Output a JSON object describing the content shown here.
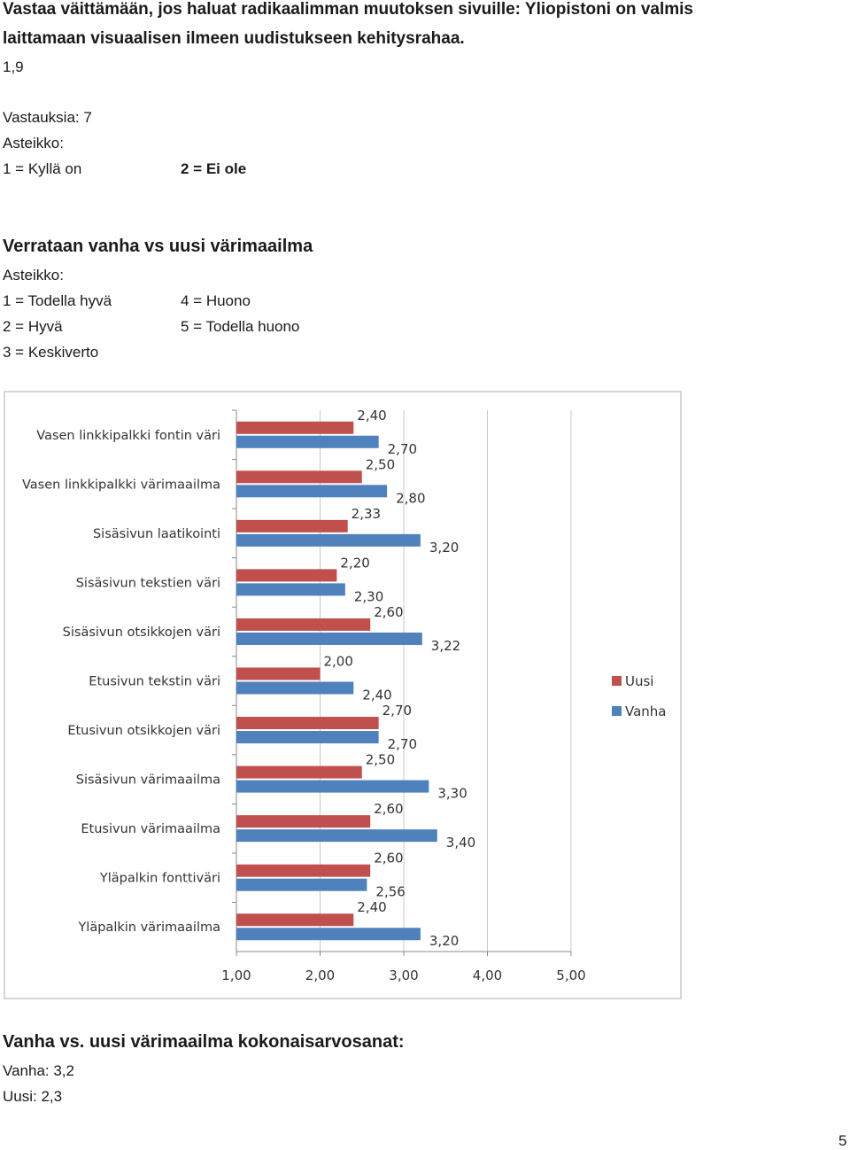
{
  "intro": {
    "heading_line1": "Vastaa väittämään, jos haluat radikaalimman muutoksen sivuille: Yliopistoni on valmis",
    "heading_line2": "laittamaan visuaalisen ilmeen uudistukseen kehitysrahaa.",
    "average": "1,9",
    "responses": "Vastauksia: 7",
    "scale_label": "Asteikko:",
    "scale_1": "1 = Kyllä on",
    "scale_2": "2 = Ei ole"
  },
  "comparison": {
    "title": "Verrataan vanha vs uusi värimaailma",
    "scale_label": "Asteikko:",
    "scale_1": "1 = Todella hyvä",
    "scale_2": "2 = Hyvä",
    "scale_3": "3 = Keskiverto",
    "scale_4": "4 = Huono",
    "scale_5": "5 = Todella huono"
  },
  "chart_data": {
    "type": "bar",
    "orientation": "horizontal",
    "categories": [
      "Vasen linkkipalkki fontin väri",
      "Vasen linkkipalkki värimaailma",
      "Sisäsivun laatikointi",
      "Sisäsivun tekstien väri",
      "Sisäsivun otsikkojen väri",
      "Etusivun tekstin väri",
      "Etusivun otsikkojen väri",
      "Sisäsivun värimaailma",
      "Etusivun värimaailma",
      "Yläpalkin fonttiväri",
      "Yläpalkin värimaailma"
    ],
    "series": [
      {
        "name": "Uusi",
        "color": "#c0504d",
        "values": [
          2.4,
          2.5,
          2.33,
          2.2,
          2.6,
          2.0,
          2.7,
          2.5,
          2.6,
          2.6,
          2.4
        ],
        "labels": [
          "2,40",
          "2,50",
          "2,33",
          "2,20",
          "2,60",
          "2,00",
          "2,70",
          "2,50",
          "2,60",
          "2,60",
          "2,40"
        ]
      },
      {
        "name": "Vanha",
        "color": "#4f81bd",
        "values": [
          2.7,
          2.8,
          3.2,
          2.3,
          3.22,
          2.4,
          2.7,
          3.3,
          3.4,
          2.56,
          3.2
        ],
        "labels": [
          "2,70",
          "2,80",
          "3,20",
          "2,30",
          "3,22",
          "2,40",
          "2,70",
          "3,30",
          "3,40",
          "2,56",
          "3,20"
        ]
      }
    ],
    "xlim": [
      1,
      5
    ],
    "xticks": [
      "1,00",
      "2,00",
      "3,00",
      "4,00",
      "5,00"
    ],
    "grid": true,
    "legend_position": "right"
  },
  "summary": {
    "title": "Vanha vs. uusi värimaailma kokonaisarvosanat:",
    "old": "Vanha: 3,2",
    "new": "Uusi: 2,3"
  },
  "page_number": "5"
}
